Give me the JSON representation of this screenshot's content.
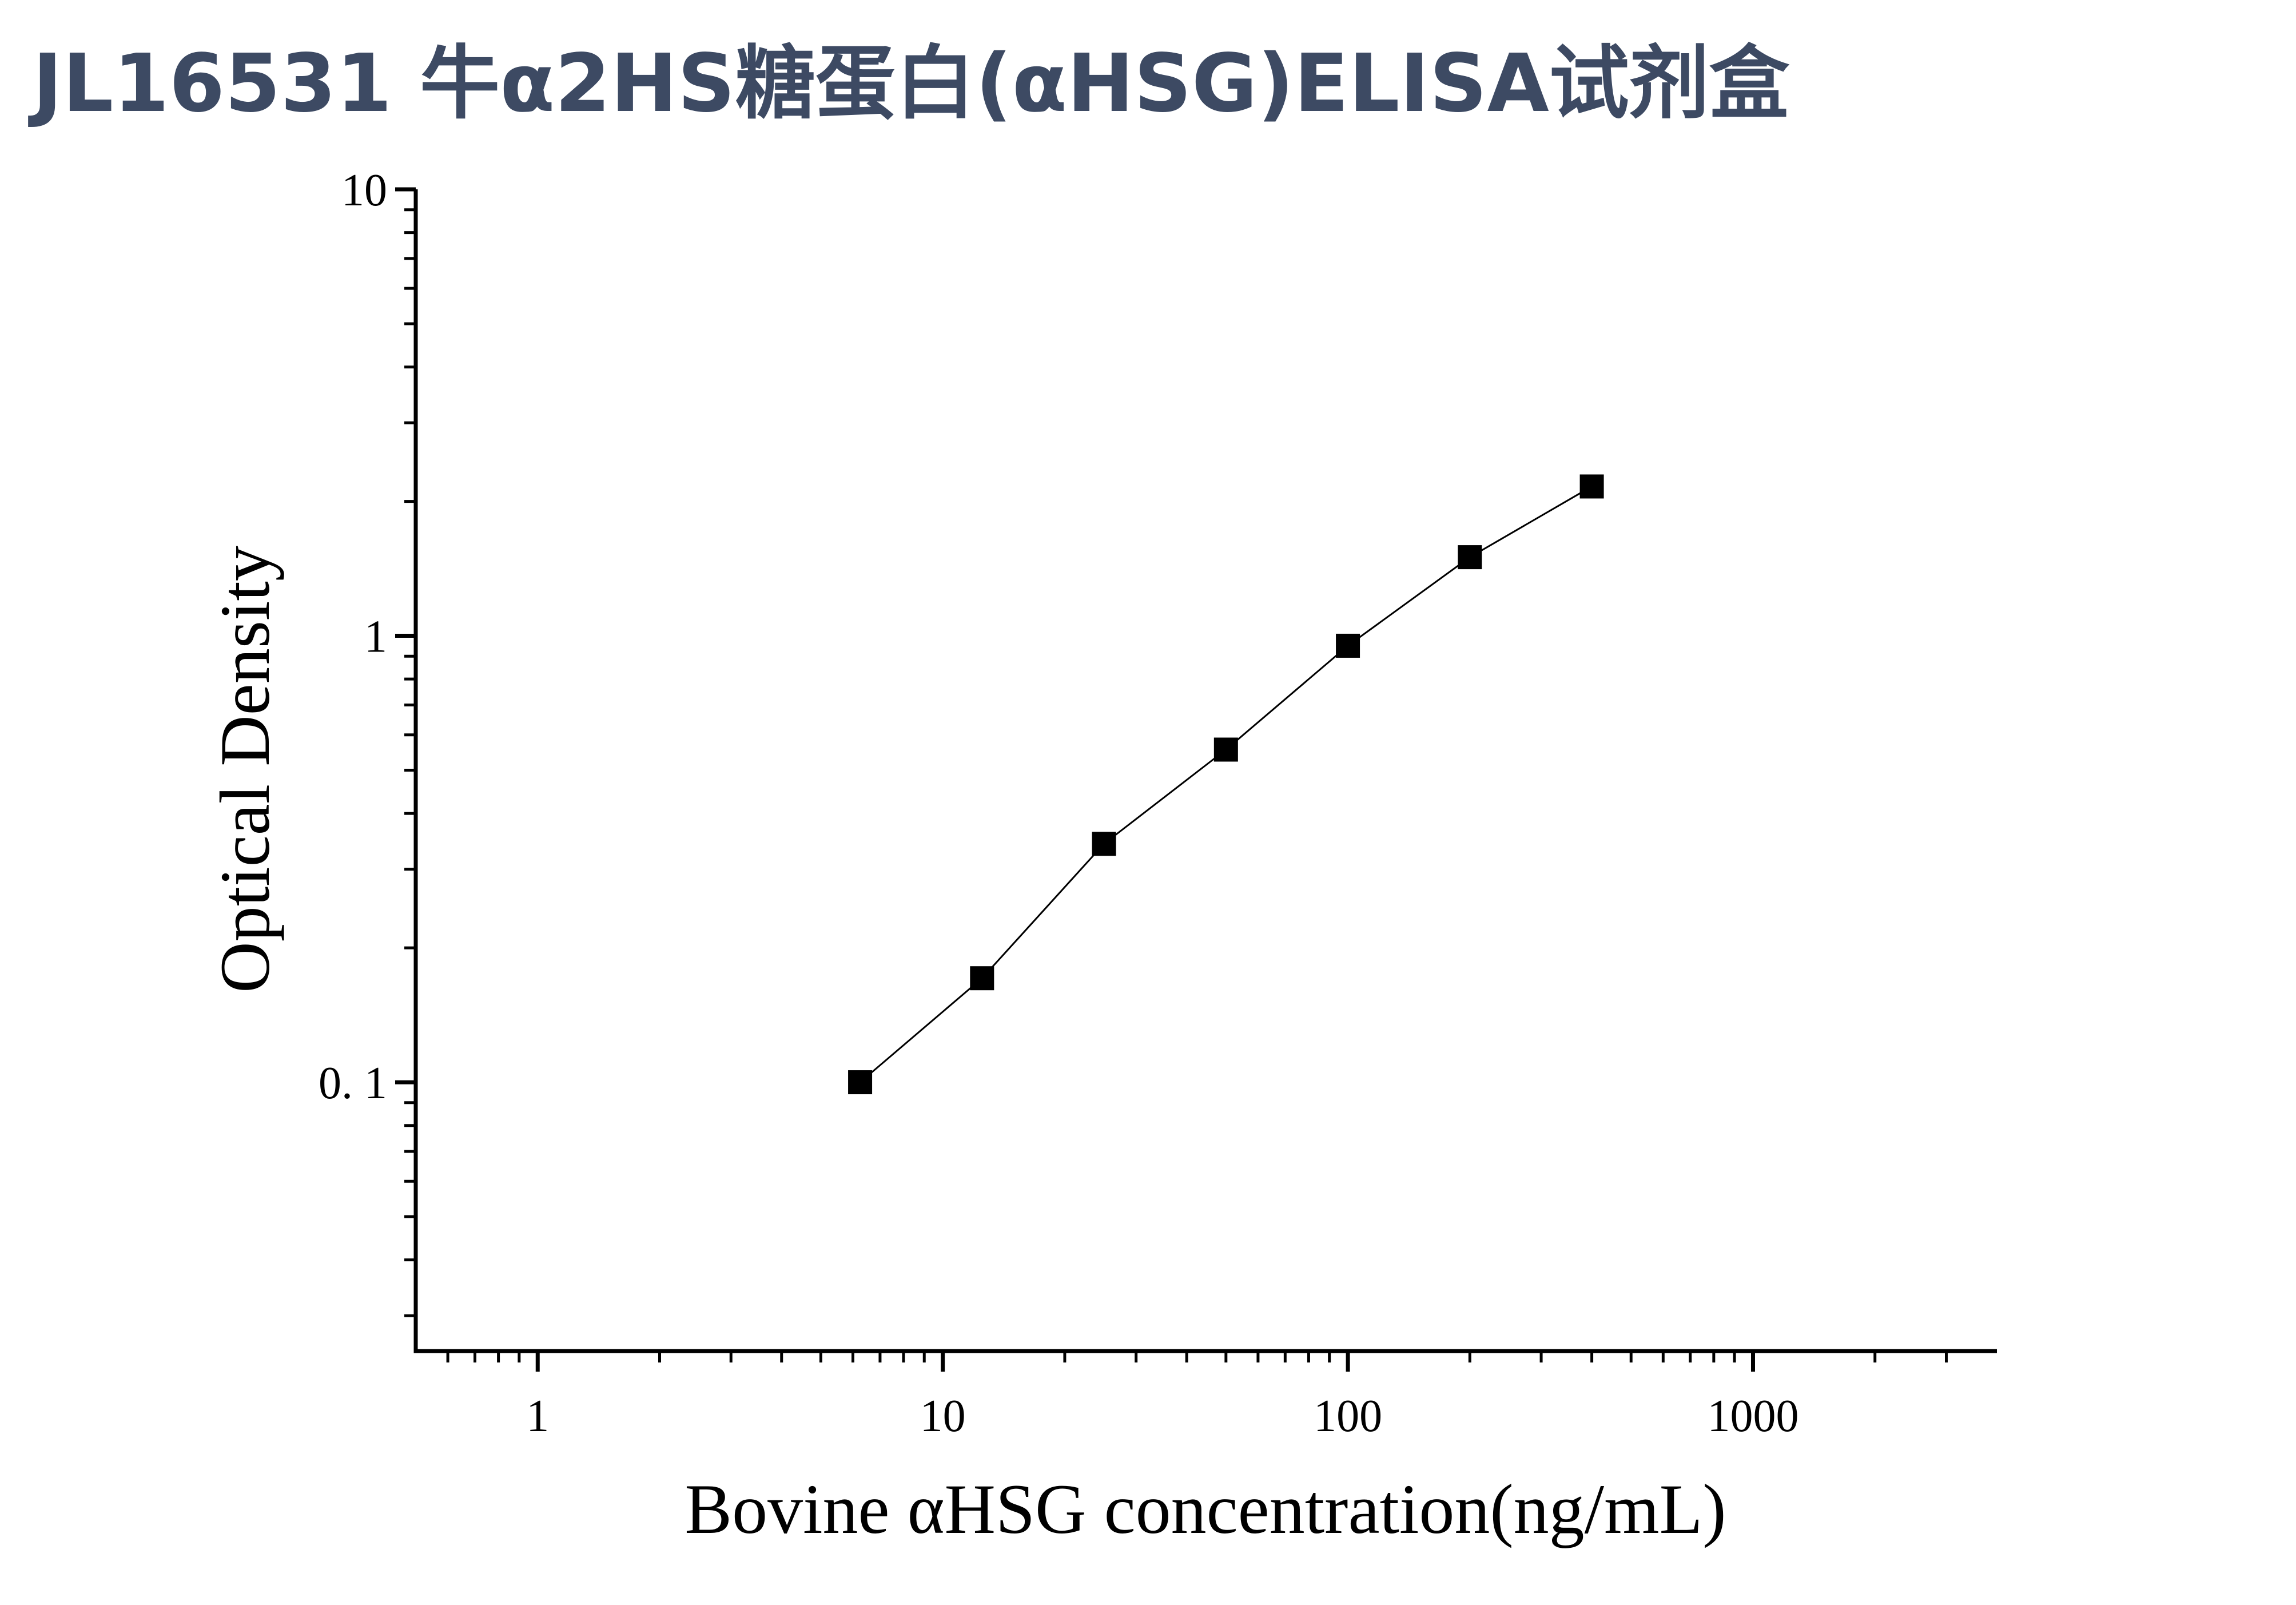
{
  "chart_data": {
    "type": "scatter",
    "title": "JL16531 牛α2HS糖蛋白(αHSG)ELISA试剂盒",
    "x_label": "Bovine αHSG concentration(ng/mL)",
    "y_label": "Optical Density",
    "x": [
      6.25,
      12.5,
      25,
      50,
      100,
      200,
      400
    ],
    "series": [
      {
        "color": "#000000",
        "values": [
          0.1,
          0.171,
          0.342,
          0.556,
          0.95,
          1.5,
          2.16
        ]
      }
    ],
    "xlim": [
      0.5,
      4000
    ],
    "ylim": [
      0.025,
      10
    ],
    "xticks": [
      1,
      10,
      100,
      1000
    ],
    "yticks": [
      {
        "value": 0.1,
        "label": "0. 1"
      },
      1,
      10
    ],
    "xscale": "log",
    "yscale": "log",
    "fit_line": true,
    "grid": false
  }
}
